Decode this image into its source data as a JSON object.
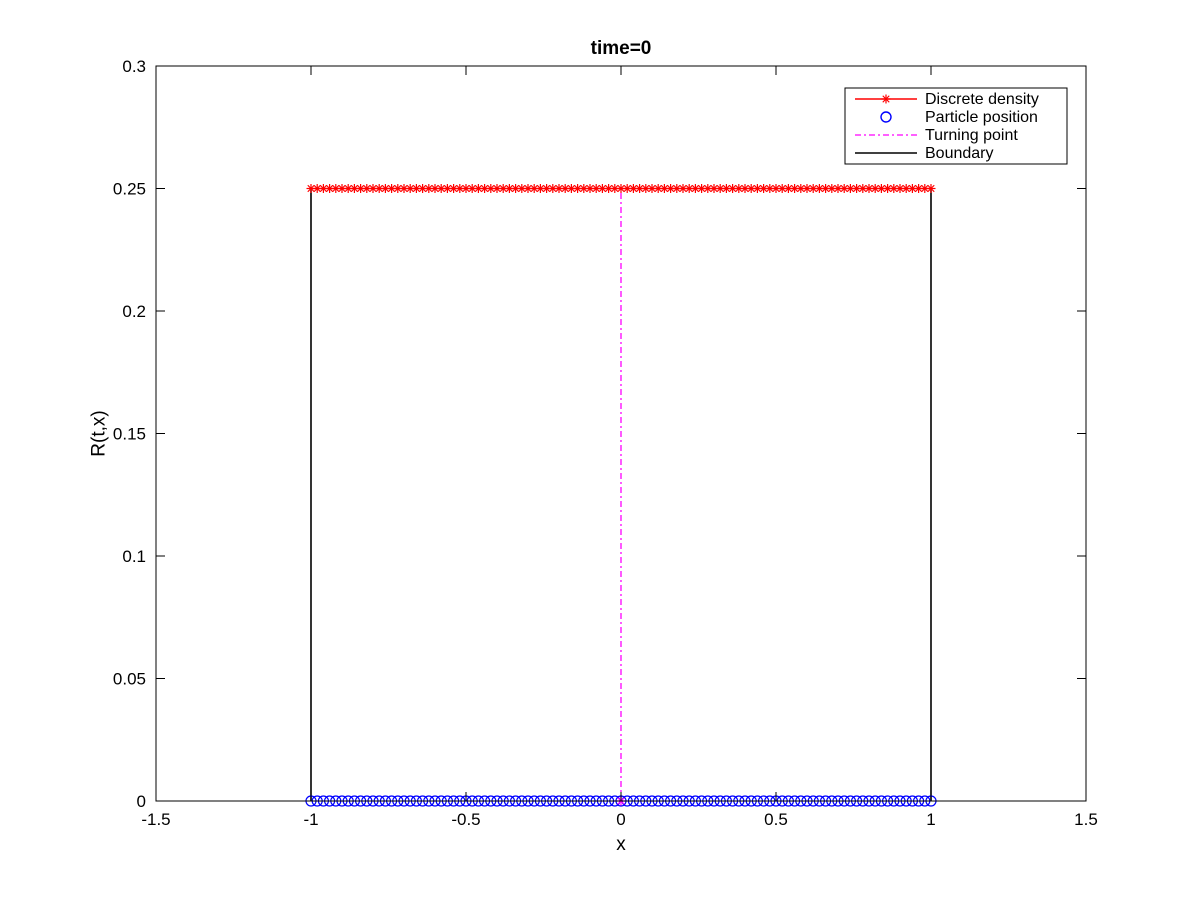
{
  "chart_data": {
    "type": "line",
    "title": "time=0",
    "xlabel": "x",
    "ylabel": "R(t,x)",
    "xlim": [
      -1.5,
      1.5
    ],
    "ylim": [
      0,
      0.3
    ],
    "xticks": [
      -1.5,
      -1,
      -0.5,
      0,
      0.5,
      1,
      1.5
    ],
    "xtick_labels": [
      "-1.5",
      "-1",
      "-0.5",
      "0",
      "0.5",
      "1",
      "1.5"
    ],
    "yticks": [
      0,
      0.05,
      0.1,
      0.15,
      0.2,
      0.25,
      0.3
    ],
    "ytick_labels": [
      "0",
      "0.05",
      "0.1",
      "0.15",
      "0.2",
      "0.25",
      "0.3"
    ],
    "grid": false,
    "legend_position": "top-right",
    "series": [
      {
        "name": "Discrete density",
        "style": "solid-line-asterisk-markers",
        "color": "#ff0000",
        "x_range": [
          -1,
          1
        ],
        "num_points": 101,
        "y_constant": 0.25
      },
      {
        "name": "Particle position",
        "style": "circle-markers",
        "color": "#0000ff",
        "x_range": [
          -1,
          1
        ],
        "num_points": 101,
        "y_constant": 0
      },
      {
        "name": "Turning point",
        "style": "dash-dot-line",
        "color": "#ff00ff",
        "x": [
          0,
          0
        ],
        "y": [
          0,
          0.25
        ]
      },
      {
        "name": "Boundary",
        "style": "solid-line",
        "color": "#000000",
        "segments": [
          {
            "x": [
              -1,
              -1
            ],
            "y": [
              0,
              0.25
            ]
          },
          {
            "x": [
              1,
              1
            ],
            "y": [
              0,
              0.25
            ]
          }
        ]
      }
    ]
  }
}
